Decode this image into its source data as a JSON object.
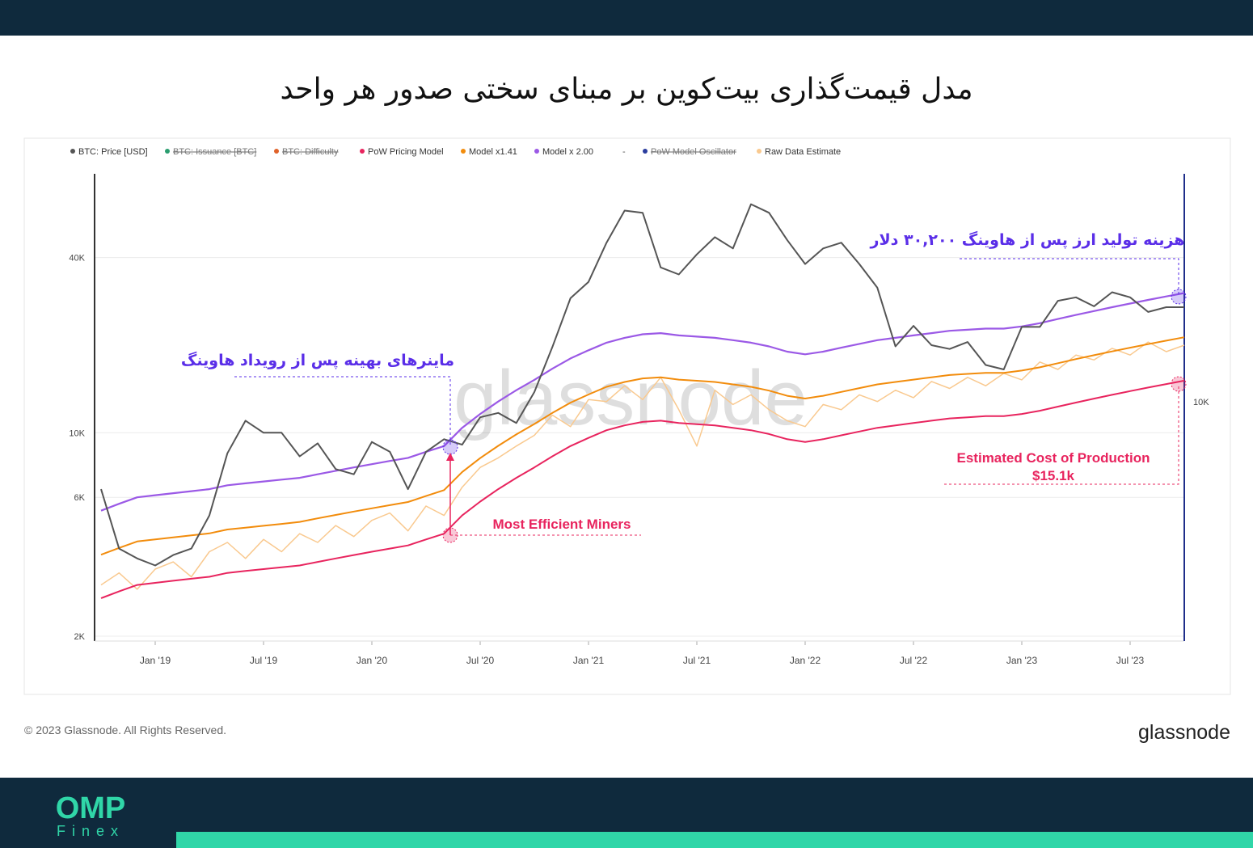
{
  "title": "مدل قیمت‌گذاری بیت‌کوین بر مبنای سختی صدور هر واحد",
  "footer": {
    "copyright": "© 2023 Glassnode. All Rights Reserved.",
    "logo": "glassnode"
  },
  "brand": {
    "name": "OMP",
    "sub": "Finex"
  },
  "chart_data": {
    "type": "line",
    "watermark": "glassnode",
    "log_scale": true,
    "grid": true,
    "x": [
      "2018-10",
      "2018-11",
      "2018-12",
      "2019-01",
      "2019-02",
      "2019-03",
      "2019-04",
      "2019-05",
      "2019-06",
      "2019-07",
      "2019-08",
      "2019-09",
      "2019-10",
      "2019-11",
      "2019-12",
      "2020-01",
      "2020-02",
      "2020-03",
      "2020-04",
      "2020-05",
      "2020-06",
      "2020-07",
      "2020-08",
      "2020-09",
      "2020-10",
      "2020-11",
      "2020-12",
      "2021-01",
      "2021-02",
      "2021-03",
      "2021-04",
      "2021-05",
      "2021-06",
      "2021-07",
      "2021-08",
      "2021-09",
      "2021-10",
      "2021-11",
      "2021-12",
      "2022-01",
      "2022-02",
      "2022-03",
      "2022-04",
      "2022-05",
      "2022-06",
      "2022-07",
      "2022-08",
      "2022-09",
      "2022-10",
      "2022-11",
      "2022-12",
      "2023-01",
      "2023-02",
      "2023-03",
      "2023-04",
      "2023-05",
      "2023-06",
      "2023-07",
      "2023-08",
      "2023-09",
      "2023-10"
    ],
    "xlim": [
      "2018-10",
      "2023-10"
    ],
    "xticks": [
      {
        "value": "2019-01",
        "label": "Jan '19"
      },
      {
        "value": "2019-07",
        "label": "Jul '19"
      },
      {
        "value": "2020-01",
        "label": "Jan '20"
      },
      {
        "value": "2020-07",
        "label": "Jul '20"
      },
      {
        "value": "2021-01",
        "label": "Jan '21"
      },
      {
        "value": "2021-07",
        "label": "Jul '21"
      },
      {
        "value": "2022-01",
        "label": "Jan '22"
      },
      {
        "value": "2022-07",
        "label": "Jul '22"
      },
      {
        "value": "2023-01",
        "label": "Jan '23"
      },
      {
        "value": "2023-07",
        "label": "Jul '23"
      }
    ],
    "ylim": [
      1924,
      77600
    ],
    "yticks": [
      {
        "value": 2000,
        "label": "2K"
      },
      {
        "value": 6000,
        "label": "6K"
      },
      {
        "value": 10000,
        "label": "10K"
      },
      {
        "value": 40000,
        "label": "40K"
      }
    ],
    "y2lim": [
      1000,
      90000
    ],
    "y2ticks": [
      {
        "value": 10000,
        "label": "10K"
      }
    ],
    "series": [
      {
        "name": "Raw Data Estimate",
        "color": "#f9c98f",
        "values": [
          3000,
          3300,
          2900,
          3400,
          3600,
          3200,
          3900,
          4200,
          3700,
          4300,
          3900,
          4500,
          4200,
          4800,
          4400,
          5000,
          5300,
          4600,
          5600,
          5200,
          6500,
          7600,
          8200,
          9000,
          9800,
          11500,
          10500,
          13000,
          12800,
          14500,
          13000,
          15500,
          12000,
          9000,
          14000,
          12500,
          13500,
          12000,
          11000,
          10500,
          12500,
          12000,
          13500,
          12800,
          14000,
          13200,
          15000,
          14200,
          15500,
          14500,
          16000,
          15200,
          17500,
          16500,
          18500,
          17800,
          19500,
          18500,
          20500,
          19000,
          20000
        ]
      },
      {
        "name": "PoW Pricing Model",
        "color": "#e8245e",
        "values": [
          2700,
          2850,
          3000,
          3050,
          3100,
          3150,
          3200,
          3300,
          3350,
          3400,
          3450,
          3500,
          3600,
          3700,
          3800,
          3900,
          4000,
          4100,
          4300,
          4500,
          5200,
          5800,
          6400,
          7000,
          7600,
          8300,
          9000,
          9600,
          10200,
          10600,
          10900,
          11000,
          10800,
          10700,
          10600,
          10400,
          10200,
          9900,
          9500,
          9300,
          9500,
          9800,
          10100,
          10400,
          10600,
          10800,
          11000,
          11200,
          11300,
          11400,
          11400,
          11600,
          11900,
          12300,
          12700,
          13100,
          13500,
          13900,
          14300,
          14700,
          15100
        ]
      },
      {
        "name": "Model x1.41",
        "color": "#f28c0c",
        "values": [
          3810,
          4020,
          4230,
          4300,
          4370,
          4440,
          4510,
          4650,
          4720,
          4790,
          4860,
          4940,
          5080,
          5220,
          5360,
          5500,
          5640,
          5780,
          6060,
          6350,
          7330,
          8180,
          9020,
          9870,
          10720,
          11700,
          12690,
          13540,
          14380,
          14950,
          15370,
          15510,
          15230,
          15090,
          14950,
          14660,
          14380,
          13960,
          13400,
          13110,
          13400,
          13820,
          14240,
          14660,
          14950,
          15230,
          15510,
          15790,
          15930,
          16070,
          16070,
          16360,
          16780,
          17340,
          17910,
          18470,
          19040,
          19600,
          20160,
          20730,
          21290
        ]
      },
      {
        "name": "Model x 2.00",
        "color": "#9b59e6",
        "values": [
          5400,
          5700,
          6000,
          6100,
          6200,
          6300,
          6400,
          6600,
          6700,
          6800,
          6900,
          7000,
          7200,
          7400,
          7600,
          7800,
          8000,
          8200,
          8600,
          9000,
          10400,
          11600,
          12800,
          14000,
          15200,
          16600,
          18000,
          19200,
          20400,
          21200,
          21800,
          22000,
          21600,
          21400,
          21200,
          20800,
          20400,
          19800,
          19000,
          18600,
          19000,
          19600,
          20200,
          20800,
          21200,
          21600,
          22000,
          22400,
          22600,
          22800,
          22800,
          23200,
          23800,
          24600,
          25400,
          26200,
          27000,
          27800,
          28600,
          29400,
          30200
        ]
      },
      {
        "name": "BTC: Price [USD]",
        "color": "#555555",
        "values": [
          6400,
          4000,
          3700,
          3500,
          3800,
          4000,
          5200,
          8500,
          11000,
          10000,
          10000,
          8300,
          9200,
          7500,
          7200,
          9300,
          8600,
          6400,
          8600,
          9500,
          9100,
          11300,
          11700,
          10800,
          13800,
          19700,
          29000,
          33000,
          45000,
          58000,
          57000,
          37000,
          35000,
          41000,
          47000,
          43000,
          61000,
          57000,
          46000,
          38000,
          43000,
          45000,
          38000,
          31500,
          19800,
          23300,
          20000,
          19400,
          20500,
          17100,
          16500,
          23100,
          23100,
          28400,
          29200,
          27200,
          30400,
          29200,
          26000,
          27000,
          27000
        ]
      }
    ],
    "hidden_series": [
      {
        "name": "BTC: Issuance [BTC]",
        "color": "#2a9d6f"
      },
      {
        "name": "BTC: Difficulty",
        "color": "#e0622a"
      },
      {
        "name": "PoW Model Oscillator",
        "color": "#2b3d9e"
      }
    ],
    "annotations": [
      "ماینرهای بهینه پس از رویداد هاوینگ",
      "هزینه تولید ارز پس از هاوینگ ۳۰,۲۰۰ دلار",
      "Most Efficient Miners",
      "Estimated Cost of Production",
      "$15.1k"
    ]
  }
}
